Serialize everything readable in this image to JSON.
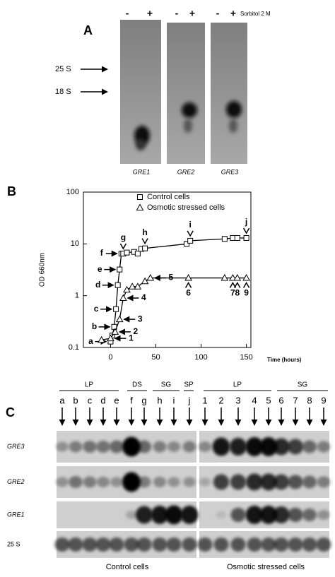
{
  "panel_a": {
    "label": "A",
    "treatment": "Sorbitol 2 M",
    "lane_signs": [
      "-",
      "+",
      "-",
      "+",
      "-",
      "+"
    ],
    "markers": [
      "25 S",
      "18 S"
    ],
    "genes": [
      "GRE1",
      "GRE2",
      "GRE3"
    ]
  },
  "chart_data": {
    "type": "line",
    "panel_label": "B",
    "ylabel": "OD 660nm",
    "xlabel": "Time (hours)",
    "yscale": "log",
    "xlim": [
      -30,
      155
    ],
    "ylim": [
      0.1,
      100
    ],
    "xticks": [
      0,
      50,
      100,
      150
    ],
    "yticks": [
      0.1,
      1,
      10,
      100
    ],
    "legend": "upper left",
    "series": [
      {
        "name": "Control cells",
        "color": "#000000",
        "marker": "square",
        "x": [
          0,
          2,
          4,
          6,
          8,
          10,
          12,
          14,
          18,
          26,
          30,
          34,
          38,
          84,
          88,
          126,
          135,
          140,
          150
        ],
        "values": [
          0.13,
          0.17,
          0.25,
          0.55,
          1.6,
          3.2,
          6.5,
          6.5,
          6.8,
          7,
          6.5,
          8,
          8.2,
          10,
          11.5,
          12.5,
          13,
          13,
          13
        ],
        "point_labels": [
          "a",
          null,
          "b",
          "c",
          "d",
          "e",
          "f",
          "g",
          null,
          null,
          null,
          null,
          "h",
          null,
          "i",
          null,
          null,
          null,
          "j"
        ]
      },
      {
        "name": "Osmotic stressed cells",
        "color": "#000000",
        "marker": "triangle",
        "x": [
          -10,
          0,
          5,
          10,
          14,
          18,
          24,
          30,
          38,
          44,
          86,
          126,
          135,
          140,
          150
        ],
        "values": [
          0.14,
          0.15,
          0.2,
          0.35,
          0.9,
          1.3,
          1.5,
          1.5,
          1.9,
          2.2,
          2.2,
          2.2,
          2.2,
          2.2,
          2.2
        ],
        "point_labels": [
          null,
          "1",
          "2",
          "3",
          "4",
          null,
          null,
          null,
          null,
          "5",
          "6",
          null,
          "7",
          "8",
          "9"
        ]
      }
    ]
  },
  "panel_c": {
    "label": "C",
    "groups": [
      "LP",
      "DS",
      "SG",
      "SP",
      "LP",
      "SG"
    ],
    "lanes_control": [
      "a",
      "b",
      "c",
      "d",
      "e",
      "f",
      "g",
      "h",
      "i",
      "j"
    ],
    "lanes_stressed": [
      "1",
      "2",
      "3",
      "4",
      "5",
      "6",
      "7",
      "8",
      "9"
    ],
    "rows": [
      "GRE3",
      "GRE2",
      "GRE1",
      "25 S"
    ],
    "captions": [
      "Control cells",
      "Osmotic stressed cells"
    ]
  }
}
